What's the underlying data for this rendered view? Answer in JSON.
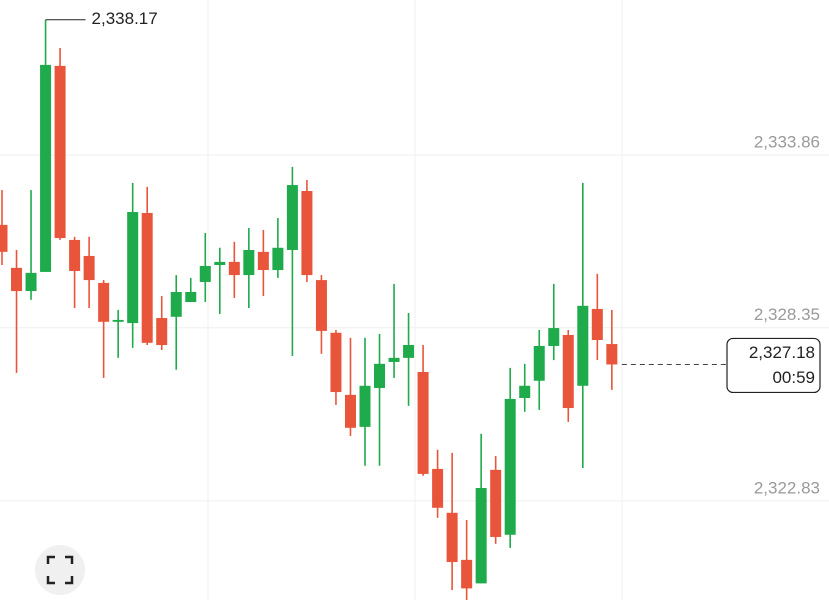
{
  "chart_data": {
    "type": "candlestick",
    "ylim": [
      2319.67,
      2338.8
    ],
    "yticks": [
      {
        "value": 2322.83,
        "label": "2,322.83"
      },
      {
        "value": 2328.35,
        "label": "2,328.35"
      },
      {
        "value": 2333.86,
        "label": "2,333.86"
      }
    ],
    "grid": true,
    "up_color": "#1faa4b",
    "down_color": "#e8553a",
    "open": [
      2331.63,
      2330.26,
      2329.52,
      2330.13,
      2336.7,
      2331.15,
      2330.64,
      2329.78,
      2328.54,
      2328.5,
      2332.01,
      2328.66,
      2328.7,
      2329.17,
      2329.81,
      2330.35,
      2330.45,
      2330.03,
      2330.77,
      2330.19,
      2330.83,
      2332.71,
      2329.87,
      2328.19,
      2326.21,
      2325.19,
      2326.43,
      2327.26,
      2327.39,
      2326.94,
      2323.85,
      2322.45,
      2320.95,
      2320.2,
      2323.82,
      2321.75,
      2326.11,
      2326.66,
      2327.77,
      2328.12,
      2326.5,
      2328.95,
      2327.83
    ],
    "high": [
      2332.74,
      2330.83,
      2332.74,
      2338.17,
      2337.27,
      2331.25,
      2331.25,
      2329.87,
      2328.92,
      2332.97,
      2332.84,
      2329.36,
      2330.03,
      2329.94,
      2331.37,
      2330.9,
      2331.09,
      2331.53,
      2331.47,
      2331.85,
      2333.48,
      2333.06,
      2330.03,
      2328.28,
      2328.03,
      2328.03,
      2328.15,
      2329.75,
      2328.82,
      2327.8,
      2324.46,
      2324.36,
      2322.22,
      2324.97,
      2324.26,
      2327.07,
      2327.2,
      2328.28,
      2329.75,
      2328.28,
      2332.97,
      2330.07,
      2328.92
    ],
    "low": [
      2330.35,
      2326.91,
      2329.24,
      2330.13,
      2331.15,
      2328.98,
      2328.98,
      2326.75,
      2327.39,
      2327.71,
      2327.8,
      2327.64,
      2327.01,
      2329.17,
      2329.17,
      2328.79,
      2329.3,
      2328.98,
      2329.36,
      2329.94,
      2327.45,
      2329.81,
      2327.52,
      2325.89,
      2324.9,
      2323.95,
      2323.95,
      2326.75,
      2325.86,
      2323.63,
      2322.29,
      2319.99,
      2319.67,
      2320.2,
      2321.46,
      2321.33,
      2325.67,
      2325.73,
      2327.32,
      2325.35,
      2323.88,
      2327.32,
      2326.37
    ],
    "close": [
      2330.77,
      2329.52,
      2330.1,
      2336.73,
      2331.21,
      2330.16,
      2329.87,
      2328.54,
      2328.6,
      2332.04,
      2327.87,
      2327.8,
      2329.49,
      2329.49,
      2330.32,
      2330.45,
      2330.03,
      2330.83,
      2330.19,
      2330.9,
      2332.9,
      2330.03,
      2328.25,
      2326.3,
      2325.16,
      2326.5,
      2327.2,
      2327.39,
      2327.8,
      2323.69,
      2322.61,
      2320.88,
      2320.04,
      2323.24,
      2321.68,
      2326.08,
      2326.5,
      2327.77,
      2328.34,
      2325.79,
      2329.05,
      2327.96,
      2327.18
    ],
    "high_marker": {
      "value": 2338.17,
      "label": "2,338.17"
    },
    "last_price": {
      "value": 2327.18,
      "label": "2,327.18"
    },
    "countdown": "00:59"
  }
}
